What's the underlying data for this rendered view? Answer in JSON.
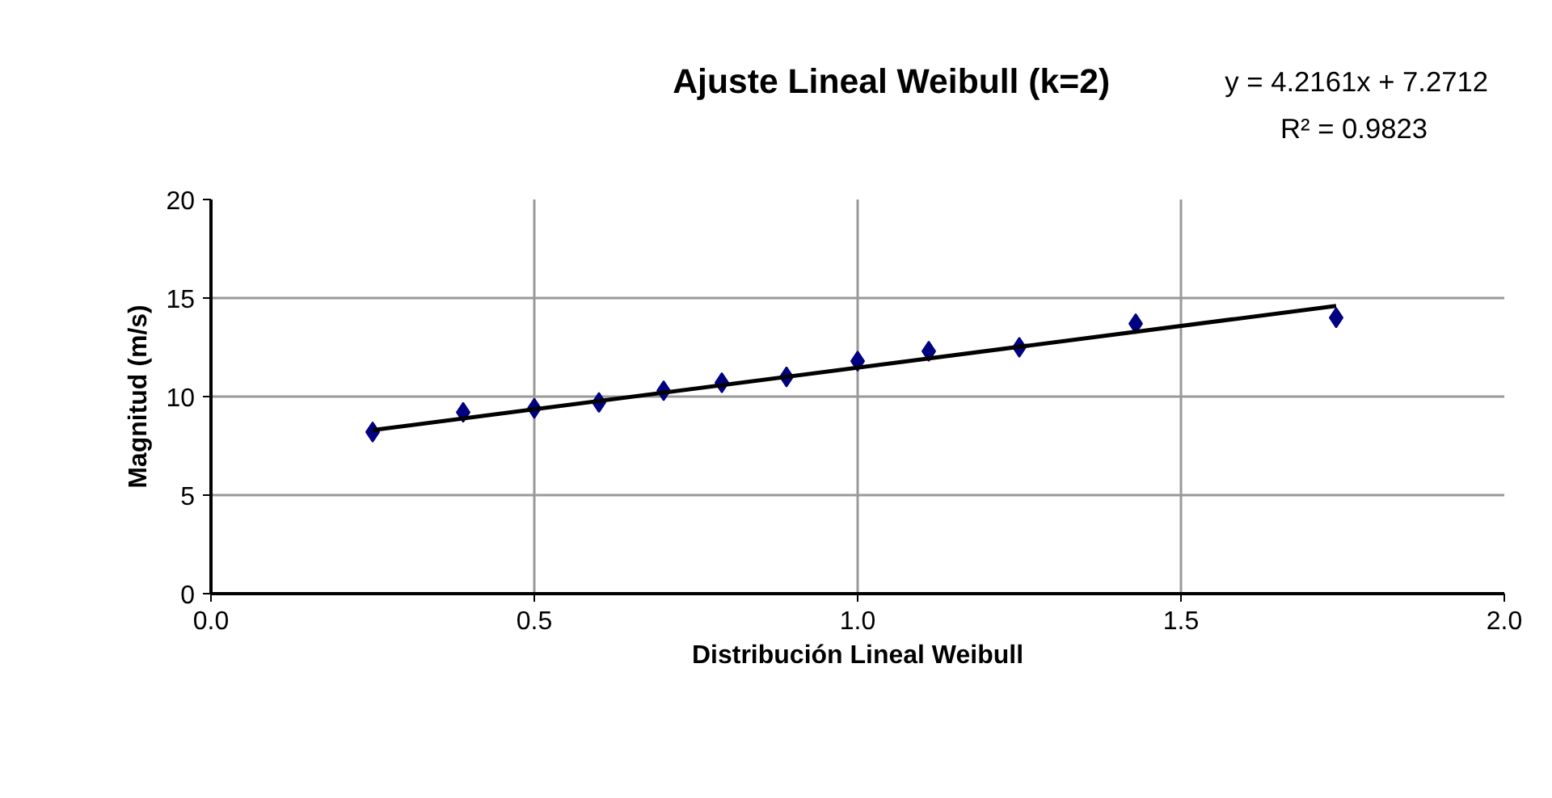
{
  "chart_data": {
    "type": "scatter",
    "title": "Ajuste Lineal Weibull (k=2)",
    "xlabel": "Distribución Lineal Weibull",
    "ylabel": "Magnitud (m/s)",
    "annotations": [
      "y = 4.2161x + 7.2712",
      "R² = 0.9823"
    ],
    "xlim": [
      0,
      2
    ],
    "ylim": [
      0,
      20
    ],
    "xticks": [
      {
        "value": 0,
        "label": "0.0"
      },
      {
        "value": 0.5,
        "label": "0.5"
      },
      {
        "value": 1,
        "label": "1.0"
      },
      {
        "value": 1.5,
        "label": "1.5"
      },
      {
        "value": 2,
        "label": "2.0"
      }
    ],
    "yticks": [
      0,
      5,
      10,
      15,
      20
    ],
    "grid": true,
    "series": [
      {
        "color": "#000080",
        "marker": "diamond",
        "x": [
          0.25,
          0.39,
          0.5,
          0.6,
          0.7,
          0.79,
          0.89,
          1.0,
          1.11,
          1.25,
          1.43,
          1.74
        ],
        "values": [
          8.2,
          9.2,
          9.4,
          9.7,
          10.3,
          10.7,
          11.0,
          11.8,
          12.3,
          12.5,
          13.7,
          14.0
        ]
      },
      {
        "type": "line",
        "color": "#000000",
        "marker": "none",
        "x": [
          0.25,
          1.74
        ],
        "values": [
          8.3,
          14.6
        ]
      }
    ]
  }
}
